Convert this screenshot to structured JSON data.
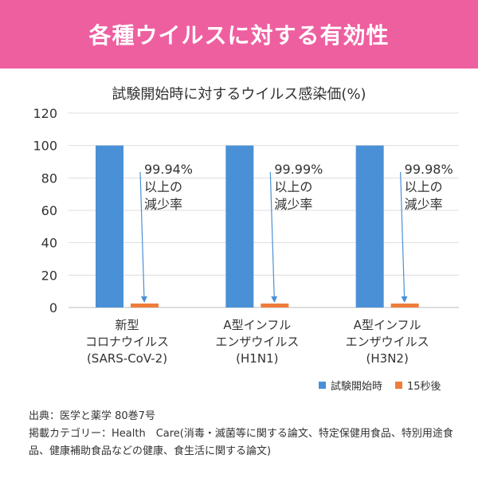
{
  "header": {
    "title": "各種ウイルスに対する有効性"
  },
  "chart_data": {
    "type": "bar",
    "title": "試験開始時に対するウイルス感染価(%)",
    "categories": [
      [
        "新型",
        "コロナウイルス",
        "(SARS-CoV-2)"
      ],
      [
        "A型インフル",
        "エンザウイルス",
        "(H1N1)"
      ],
      [
        "A型インフル",
        "エンザウイルス",
        "(H3N2)"
      ]
    ],
    "series": [
      {
        "name": "試験開始時",
        "values": [
          100,
          100,
          100
        ],
        "color": "#4a90d6"
      },
      {
        "name": "15秒後",
        "values": [
          0.06,
          0.01,
          0.02
        ],
        "color": "#ee7d3b"
      }
    ],
    "yticks": [
      "0",
      "20",
      "40",
      "60",
      "80",
      "100",
      "120"
    ],
    "ylim": [
      0,
      120
    ],
    "annotations": [
      {
        "lines": [
          "99.94%",
          "以上の",
          "減少率"
        ]
      },
      {
        "lines": [
          "99.99%",
          "以上の",
          "減少率"
        ]
      },
      {
        "lines": [
          "99.98%",
          "以上の",
          "減少率"
        ]
      }
    ],
    "grid": true,
    "legend_position": "bottom-right"
  },
  "notes": {
    "source": "出典：医学と薬学 80巻7号",
    "category": "掲載カテゴリー：Health　Care(消毒・滅菌等に関する論文、特定保健用食品、特別用途食品、健康補助食品などの健康、食生活に関する論文)"
  }
}
